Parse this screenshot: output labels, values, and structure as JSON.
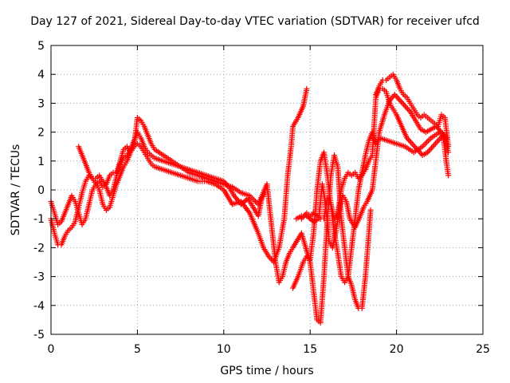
{
  "chart_data": {
    "type": "scatter",
    "title": "Day 127 of 2021, Sidereal Day-to-day VTEC variation (SDTVAR) for receiver ufcd",
    "xlabel": "GPS time / hours",
    "ylabel": "SDTVAR / TECUs",
    "xlim": [
      0,
      25
    ],
    "ylim": [
      -5,
      5
    ],
    "xticks": [
      "0",
      "5",
      "10",
      "15",
      "20",
      "25"
    ],
    "yticks": [
      "-5",
      "-4",
      "-3",
      "-2",
      "-1",
      "0",
      "1",
      "2",
      "3",
      "4",
      "5"
    ],
    "grid": true,
    "marker": "+",
    "color": "#ff0000",
    "series": [
      {
        "values": [
          [
            0.0,
            -0.4
          ],
          [
            0.2,
            -0.8
          ],
          [
            0.4,
            -1.2
          ],
          [
            0.6,
            -1.1
          ],
          [
            0.8,
            -0.8
          ],
          [
            1.0,
            -0.5
          ],
          [
            1.2,
            -0.2
          ],
          [
            1.4,
            -0.4
          ],
          [
            1.6,
            -0.8
          ],
          [
            1.8,
            -1.2
          ],
          [
            2.0,
            -1.0
          ],
          [
            2.2,
            -0.5
          ],
          [
            2.4,
            0.0
          ],
          [
            2.6,
            0.2
          ],
          [
            2.8,
            0.3
          ],
          [
            3.0,
            0.1
          ],
          [
            3.2,
            0.2
          ],
          [
            3.4,
            0.5
          ],
          [
            3.6,
            0.6
          ],
          [
            3.8,
            0.6
          ],
          [
            4.0,
            1.0
          ],
          [
            4.2,
            1.4
          ],
          [
            4.4,
            1.5
          ],
          [
            4.6,
            1.3
          ],
          [
            4.8,
            1.5
          ],
          [
            5.0,
            1.6
          ],
          [
            5.2,
            1.5
          ],
          [
            5.4,
            1.3
          ],
          [
            5.6,
            1.1
          ],
          [
            5.8,
            0.9
          ],
          [
            6.0,
            0.8
          ],
          [
            6.5,
            0.7
          ],
          [
            7.0,
            0.6
          ],
          [
            7.5,
            0.5
          ],
          [
            8.0,
            0.4
          ],
          [
            8.5,
            0.3
          ],
          [
            9.0,
            0.3
          ],
          [
            9.5,
            0.2
          ],
          [
            10.0,
            0.0
          ],
          [
            10.5,
            -0.5
          ],
          [
            11.0,
            -0.4
          ],
          [
            11.5,
            -0.8
          ],
          [
            12.0,
            -1.5
          ],
          [
            12.3,
            -2.0
          ],
          [
            12.6,
            -2.3
          ],
          [
            12.9,
            -2.5
          ],
          [
            13.2,
            -2.0
          ],
          [
            13.5,
            -1.0
          ],
          [
            13.7,
            0.5
          ],
          [
            13.9,
            1.5
          ],
          [
            14.0,
            2.2
          ],
          [
            14.3,
            2.5
          ],
          [
            14.6,
            2.9
          ],
          [
            14.8,
            3.5
          ]
        ]
      },
      {
        "values": [
          [
            0.0,
            -1.0
          ],
          [
            0.2,
            -1.5
          ],
          [
            0.4,
            -1.9
          ],
          [
            0.6,
            -1.9
          ],
          [
            0.8,
            -1.6
          ],
          [
            1.0,
            -1.4
          ],
          [
            1.2,
            -1.3
          ],
          [
            1.4,
            -1.1
          ],
          [
            1.6,
            -0.6
          ],
          [
            1.8,
            -0.1
          ],
          [
            2.0,
            0.3
          ],
          [
            2.2,
            0.5
          ],
          [
            2.4,
            0.4
          ],
          [
            2.6,
            0.2
          ],
          [
            2.8,
            0.0
          ],
          [
            3.0,
            -0.5
          ],
          [
            3.2,
            -0.7
          ],
          [
            3.4,
            -0.6
          ],
          [
            3.6,
            -0.2
          ],
          [
            3.8,
            0.2
          ],
          [
            4.0,
            0.5
          ],
          [
            4.2,
            0.8
          ],
          [
            4.4,
            1.0
          ],
          [
            4.6,
            1.3
          ],
          [
            4.8,
            1.5
          ],
          [
            5.0,
            2.5
          ],
          [
            5.2,
            2.4
          ],
          [
            5.4,
            2.2
          ],
          [
            5.6,
            1.9
          ],
          [
            5.8,
            1.6
          ],
          [
            6.0,
            1.4
          ],
          [
            6.5,
            1.2
          ],
          [
            7.0,
            1.0
          ],
          [
            7.5,
            0.8
          ],
          [
            8.0,
            0.6
          ],
          [
            8.5,
            0.5
          ],
          [
            9.0,
            0.4
          ],
          [
            9.5,
            0.3
          ],
          [
            10.0,
            0.2
          ],
          [
            10.5,
            0.1
          ],
          [
            11.0,
            -0.1
          ],
          [
            11.5,
            -0.2
          ],
          [
            12.0,
            -0.5
          ],
          [
            12.5,
            0.2
          ],
          [
            13.0,
            -2.5
          ],
          [
            13.2,
            -3.2
          ],
          [
            13.4,
            -3.0
          ],
          [
            13.6,
            -2.5
          ],
          [
            13.8,
            -2.2
          ],
          [
            14.0,
            -2.0
          ],
          [
            14.5,
            -1.5
          ],
          [
            15.0,
            -2.5
          ],
          [
            15.2,
            -3.5
          ],
          [
            15.4,
            -4.5
          ],
          [
            15.6,
            -4.6
          ],
          [
            15.8,
            -3.0
          ],
          [
            16.0,
            -1.0
          ],
          [
            16.2,
            0.5
          ],
          [
            16.4,
            1.2
          ],
          [
            16.6,
            0.8
          ],
          [
            16.8,
            -1.0
          ],
          [
            17.0,
            -2.0
          ],
          [
            17.2,
            -3.0
          ],
          [
            17.4,
            -3.3
          ],
          [
            17.6,
            -3.8
          ],
          [
            17.8,
            -4.1
          ],
          [
            18.0,
            -4.1
          ],
          [
            18.2,
            -3.0
          ],
          [
            18.4,
            -1.5
          ],
          [
            18.5,
            -0.7
          ]
        ]
      },
      {
        "values": [
          [
            1.6,
            1.5
          ],
          [
            1.8,
            1.2
          ],
          [
            2.0,
            0.9
          ],
          [
            2.2,
            0.6
          ],
          [
            2.4,
            0.4
          ],
          [
            2.6,
            0.4
          ],
          [
            2.8,
            0.5
          ],
          [
            3.0,
            0.3
          ],
          [
            3.2,
            0.1
          ],
          [
            3.4,
            -0.2
          ],
          [
            3.6,
            0.0
          ],
          [
            3.8,
            0.5
          ],
          [
            4.0,
            0.9
          ],
          [
            4.2,
            1.1
          ],
          [
            4.4,
            1.2
          ],
          [
            4.6,
            1.4
          ],
          [
            4.8,
            1.7
          ],
          [
            5.0,
            2.0
          ],
          [
            5.2,
            1.8
          ],
          [
            5.4,
            1.5
          ],
          [
            5.6,
            1.3
          ],
          [
            5.8,
            1.2
          ],
          [
            6.0,
            1.1
          ],
          [
            6.5,
            1.0
          ],
          [
            7.0,
            0.9
          ],
          [
            7.5,
            0.8
          ],
          [
            8.0,
            0.7
          ],
          [
            8.5,
            0.6
          ],
          [
            9.0,
            0.5
          ],
          [
            9.5,
            0.4
          ],
          [
            10.0,
            0.3
          ],
          [
            10.3,
            0.1
          ],
          [
            10.6,
            -0.2
          ],
          [
            11.0,
            -0.5
          ],
          [
            11.4,
            -0.3
          ],
          [
            11.7,
            -0.6
          ],
          [
            12.0,
            -0.9
          ],
          [
            12.2,
            -0.3
          ],
          [
            12.4,
            -0.1
          ]
        ]
      },
      {
        "values": [
          [
            14.0,
            -3.4
          ],
          [
            14.3,
            -3.0
          ],
          [
            14.6,
            -2.5
          ],
          [
            14.8,
            -2.3
          ],
          [
            15.0,
            -2.4
          ],
          [
            15.2,
            -1.5
          ],
          [
            15.4,
            0.0
          ],
          [
            15.6,
            1.0
          ],
          [
            15.8,
            1.3
          ],
          [
            16.0,
            0.5
          ],
          [
            16.2,
            -0.5
          ],
          [
            16.4,
            -1.5
          ],
          [
            16.6,
            -2.2
          ],
          [
            16.8,
            -3.0
          ],
          [
            17.0,
            -3.2
          ],
          [
            17.2,
            -3.0
          ],
          [
            17.4,
            -2.0
          ],
          [
            17.6,
            -1.0
          ],
          [
            17.8,
            0.0
          ],
          [
            18.0,
            0.6
          ],
          [
            18.2,
            1.2
          ],
          [
            18.4,
            1.7
          ],
          [
            18.6,
            2.0
          ],
          [
            18.8,
            1.6
          ],
          [
            19.0,
            1.8
          ],
          [
            19.5,
            1.7
          ],
          [
            20.0,
            1.6
          ],
          [
            20.5,
            1.5
          ],
          [
            21.0,
            1.3
          ],
          [
            21.5,
            1.5
          ],
          [
            22.0,
            1.8
          ],
          [
            22.5,
            2.0
          ],
          [
            22.8,
            1.8
          ],
          [
            23.0,
            1.3
          ]
        ]
      },
      {
        "values": [
          [
            14.5,
            -1.0
          ],
          [
            14.8,
            -0.8
          ],
          [
            15.0,
            -0.9
          ],
          [
            15.2,
            -0.8
          ],
          [
            15.4,
            -0.9
          ],
          [
            15.6,
            -1.0
          ],
          [
            15.8,
            -1.0
          ],
          [
            16.0,
            -0.3
          ],
          [
            16.2,
            -0.5
          ],
          [
            16.4,
            -1.0
          ],
          [
            16.6,
            -0.8
          ],
          [
            16.8,
            0.0
          ],
          [
            17.0,
            0.4
          ],
          [
            17.2,
            0.6
          ],
          [
            17.4,
            0.5
          ],
          [
            17.6,
            0.6
          ],
          [
            17.8,
            0.4
          ],
          [
            18.0,
            0.5
          ],
          [
            18.2,
            0.7
          ],
          [
            18.4,
            1.0
          ],
          [
            18.6,
            1.2
          ],
          [
            18.8,
            3.2
          ],
          [
            19.0,
            3.5
          ],
          [
            19.2,
            3.5
          ],
          [
            19.4,
            3.4
          ],
          [
            19.6,
            3.0
          ],
          [
            19.8,
            2.8
          ],
          [
            20.0,
            2.6
          ],
          [
            20.3,
            2.2
          ],
          [
            20.6,
            1.8
          ],
          [
            20.9,
            1.6
          ],
          [
            21.2,
            1.4
          ],
          [
            21.5,
            1.2
          ],
          [
            21.8,
            1.3
          ],
          [
            22.1,
            1.5
          ],
          [
            22.4,
            1.7
          ],
          [
            22.7,
            1.9
          ],
          [
            22.9,
            0.9
          ],
          [
            23.0,
            0.5
          ]
        ]
      },
      {
        "values": [
          [
            18.8,
            3.3
          ],
          [
            19.0,
            3.6
          ],
          [
            19.2,
            3.8
          ],
          [
            19.4,
            3.8
          ],
          [
            19.6,
            3.9
          ],
          [
            19.8,
            4.0
          ],
          [
            20.0,
            3.8
          ],
          [
            20.2,
            3.5
          ],
          [
            20.4,
            3.3
          ],
          [
            20.6,
            3.2
          ],
          [
            20.8,
            3.0
          ],
          [
            21.0,
            2.8
          ],
          [
            21.2,
            2.6
          ],
          [
            21.4,
            2.5
          ],
          [
            21.6,
            2.6
          ],
          [
            21.8,
            2.5
          ],
          [
            22.0,
            2.4
          ],
          [
            22.2,
            2.3
          ],
          [
            22.4,
            2.2
          ],
          [
            22.6,
            2.6
          ],
          [
            22.8,
            2.5
          ],
          [
            23.0,
            1.5
          ]
        ]
      },
      {
        "values": [
          [
            14.2,
            -1.0
          ],
          [
            14.5,
            -0.9
          ],
          [
            14.8,
            -0.9
          ],
          [
            15.2,
            -1.1
          ],
          [
            15.5,
            -1.0
          ],
          [
            15.7,
            0.2
          ],
          [
            15.9,
            -0.5
          ],
          [
            16.1,
            -1.8
          ],
          [
            16.3,
            -2.0
          ],
          [
            16.5,
            -1.4
          ],
          [
            16.7,
            -0.6
          ],
          [
            16.9,
            -0.2
          ],
          [
            17.1,
            -0.4
          ],
          [
            17.3,
            -1.0
          ],
          [
            17.6,
            -1.3
          ],
          [
            17.9,
            -0.9
          ],
          [
            18.1,
            -0.6
          ],
          [
            18.3,
            -0.4
          ],
          [
            18.6,
            0.0
          ],
          [
            18.8,
            1.0
          ],
          [
            19.0,
            2.0
          ],
          [
            19.3,
            2.6
          ],
          [
            19.6,
            3.1
          ],
          [
            19.9,
            3.3
          ],
          [
            20.2,
            3.1
          ],
          [
            20.5,
            2.9
          ],
          [
            20.8,
            2.7
          ],
          [
            21.1,
            2.4
          ],
          [
            21.4,
            2.1
          ],
          [
            21.7,
            2.0
          ],
          [
            22.0,
            2.1
          ],
          [
            22.3,
            2.2
          ],
          [
            22.6,
            2.0
          ],
          [
            22.9,
            1.8
          ]
        ]
      }
    ]
  }
}
